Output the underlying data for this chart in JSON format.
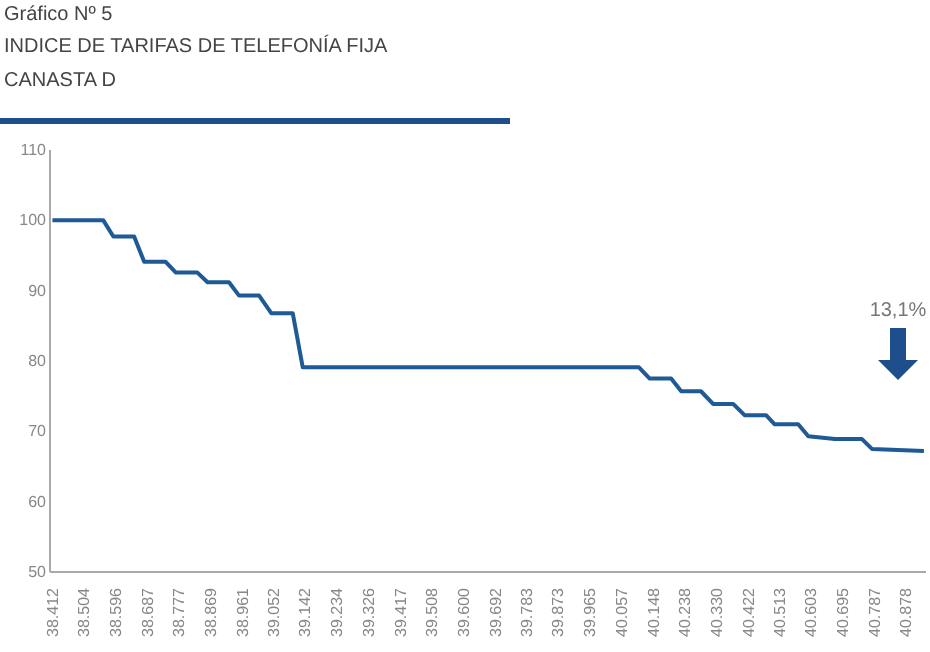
{
  "chart_data": {
    "type": "line",
    "title": "INDICE DE TARIFAS DE TELEFONÍA FIJA",
    "subtitle": "CANASTA D",
    "annotations": [
      "Gráfico Nº 5",
      "13,1%"
    ],
    "x": [
      38412,
      38559,
      38588,
      38648,
      38677,
      38739,
      38768,
      38830,
      38860,
      38922,
      38951,
      39009,
      39044,
      39106,
      39135,
      40106,
      40137,
      40199,
      40228,
      40285,
      40320,
      40378,
      40411,
      40473,
      40498,
      40566,
      40595,
      40672,
      40750,
      40779,
      40929
    ],
    "series": [
      {
        "color": "#1f5a96",
        "values": [
          100,
          100,
          97.7,
          97.7,
          94.1,
          94.1,
          92.6,
          92.6,
          91.2,
          91.2,
          89.3,
          89.3,
          86.8,
          86.8,
          79.1,
          79.1,
          77.5,
          77.5,
          75.7,
          75.7,
          73.9,
          73.9,
          72.3,
          72.3,
          71,
          71,
          69.3,
          68.9,
          68.9,
          67.5,
          67.2
        ]
      }
    ],
    "xlim": [
      38405,
      40935
    ],
    "xticks": [
      {
        "value": 38412,
        "label": "38.412"
      },
      {
        "value": 38504,
        "label": "38.504"
      },
      {
        "value": 38596,
        "label": "38.596"
      },
      {
        "value": 38687,
        "label": "38.687"
      },
      {
        "value": 38777,
        "label": "38.777"
      },
      {
        "value": 38869,
        "label": "38.869"
      },
      {
        "value": 38961,
        "label": "38.961"
      },
      {
        "value": 39052,
        "label": "39.052"
      },
      {
        "value": 39142,
        "label": "39.142"
      },
      {
        "value": 39234,
        "label": "39.234"
      },
      {
        "value": 39326,
        "label": "39.326"
      },
      {
        "value": 39417,
        "label": "39.417"
      },
      {
        "value": 39508,
        "label": "39.508"
      },
      {
        "value": 39600,
        "label": "39.600"
      },
      {
        "value": 39692,
        "label": "39.692"
      },
      {
        "value": 39783,
        "label": "39.783"
      },
      {
        "value": 39873,
        "label": "39.873"
      },
      {
        "value": 39965,
        "label": "39.965"
      },
      {
        "value": 40057,
        "label": "40.057"
      },
      {
        "value": 40148,
        "label": "40.148"
      },
      {
        "value": 40238,
        "label": "40.238"
      },
      {
        "value": 40330,
        "label": "40.330"
      },
      {
        "value": 40422,
        "label": "40.422"
      },
      {
        "value": 40513,
        "label": "40.513"
      },
      {
        "value": 40603,
        "label": "40.603"
      },
      {
        "value": 40695,
        "label": "40.695"
      },
      {
        "value": 40787,
        "label": "40.787"
      },
      {
        "value": 40878,
        "label": "40.878"
      }
    ],
    "ylim": [
      50,
      110
    ],
    "yticks": [
      50,
      60,
      70,
      80,
      90,
      100,
      110
    ],
    "grid": false,
    "marker": "none",
    "line_style": "solid"
  }
}
